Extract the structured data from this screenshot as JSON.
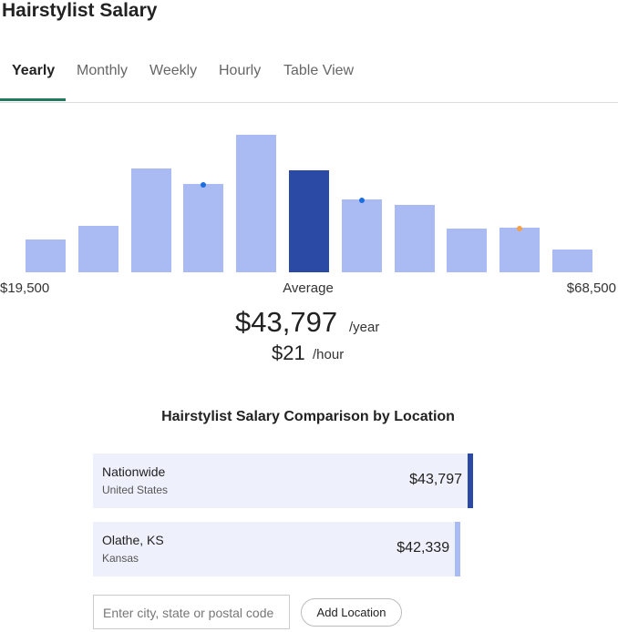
{
  "header": {
    "title": "Hairstylist Salary"
  },
  "tabs": {
    "items": [
      "Yearly",
      "Monthly",
      "Weekly",
      "Hourly",
      "Table View"
    ],
    "active": 0
  },
  "histogram": {
    "bars": [
      36,
      51,
      114,
      97,
      151,
      112,
      80,
      74,
      48,
      49,
      25
    ],
    "highlight": 5,
    "color": "#a9bbf2",
    "highlight_color": "#2a4aa6",
    "markers": [
      {
        "bar": 3,
        "color": "#1a6ee0"
      },
      {
        "bar": 6,
        "color": "#1a6ee0"
      },
      {
        "bar": 9,
        "color": "#f5a04a"
      }
    ],
    "min_label": "$19,500",
    "center_label": "Average",
    "max_label": "$68,500"
  },
  "average": {
    "yearly": "$43,797",
    "yearly_unit": "/year",
    "hourly": "$21",
    "hourly_unit": "/hour"
  },
  "comparison": {
    "title": "Hairstylist Salary Comparison by Location",
    "locations": [
      {
        "name": "Nationwide",
        "sub": "United States",
        "value": 43797,
        "value_label": "$43,797",
        "color": "#2a4aa6"
      },
      {
        "name": "Olathe, KS",
        "sub": "Kansas",
        "value": 42339,
        "value_label": "$42,339",
        "color": "#a9bbf2"
      }
    ]
  },
  "form": {
    "placeholder": "Enter city, state or postal code",
    "button": "Add Location"
  }
}
